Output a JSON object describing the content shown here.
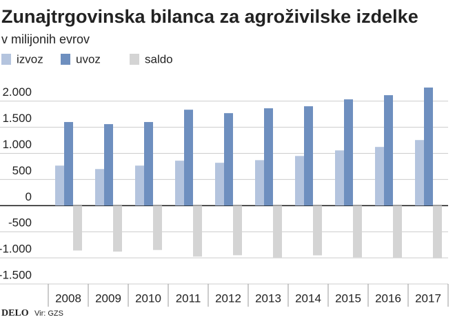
{
  "chart_data": {
    "type": "bar",
    "title": "Zunajtrgovinska bilanca za agroživilske izdelke",
    "subtitle": "v milijonih evrov",
    "categories": [
      "2008",
      "2009",
      "2010",
      "2011",
      "2012",
      "2013",
      "2014",
      "2015",
      "2016",
      "2017"
    ],
    "series": [
      {
        "name": "izvoz",
        "color": "#b4c4de",
        "values": [
          766,
          700,
          766,
          860,
          820,
          870,
          950,
          1057,
          1123,
          1255
        ]
      },
      {
        "name": "uvoz",
        "color": "#6e8fbf",
        "values": [
          1600,
          1560,
          1600,
          1836,
          1770,
          1863,
          1902,
          2034,
          2114,
          2260
        ]
      },
      {
        "name": "saldo",
        "color": "#d4d4d4",
        "values": [
          -860,
          -880,
          -850,
          -976,
          -950,
          -993,
          -952,
          -990,
          -1005,
          -1010
        ]
      }
    ],
    "ylim": [
      -1500,
      2300
    ],
    "yticks": [
      {
        "value": -1500,
        "label": "-1.500"
      },
      {
        "value": -1000,
        "label": "-1.000"
      },
      -500,
      0,
      500,
      {
        "value": 1000,
        "label": "1.000"
      },
      {
        "value": 1500,
        "label": "1.500"
      },
      {
        "value": 2000,
        "label": "2.000"
      }
    ],
    "grid": true,
    "legend": "top-left",
    "logo": "DELO",
    "source": "Vir: GZS"
  }
}
